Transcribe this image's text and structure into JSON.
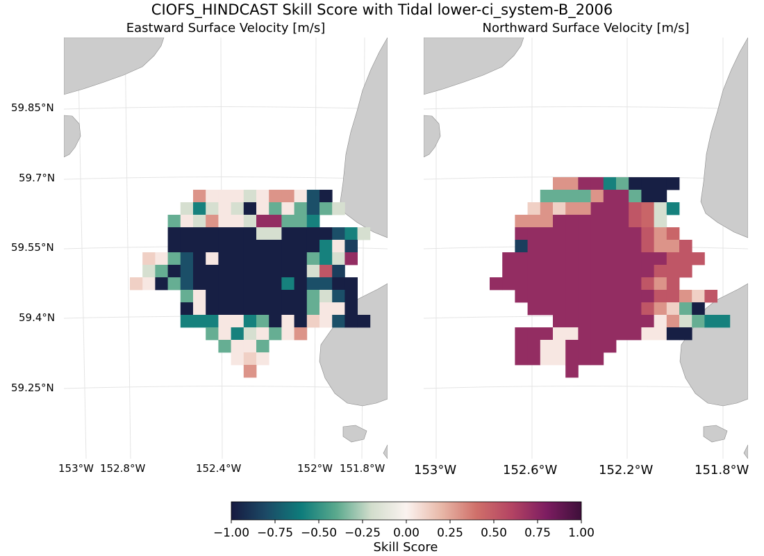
{
  "title": "CIOFS_HINDCAST Skill Score with Tidal lower-ci_system-B_2006",
  "panels": [
    {
      "title": "Eastward Surface Velocity [m/s]",
      "lat_labels": [
        "59.85°N",
        "59.7°N",
        "59.55°N",
        "59.4°N",
        "59.25°N"
      ],
      "lon_labels": [
        "153°W",
        "152.8°W",
        "152.4°W",
        "152°W",
        "151.8°W"
      ]
    },
    {
      "title": "Northward Surface Velocity [m/s]",
      "lon_labels": [
        "153°W",
        "152.6°W",
        "152.2°W",
        "151.8°W"
      ]
    }
  ],
  "colorbar": {
    "label": "Skill Score",
    "ticks": [
      "−1.00",
      "−0.75",
      "−0.50",
      "−0.25",
      "0.00",
      "0.25",
      "0.50",
      "0.75",
      "1.00"
    ],
    "vmin": -1.0,
    "vmax": 1.0,
    "colormap": [
      "#161a40",
      "#1c4a66",
      "#0e7c7b",
      "#5aa98d",
      "#d2ddcc",
      "#fbf3f0",
      "#e8b8a8",
      "#d0706a",
      "#b44463",
      "#7d1d61",
      "#3e0f3a"
    ]
  },
  "land_color": "#cccccc",
  "grid_color": "#e4e4e4"
}
